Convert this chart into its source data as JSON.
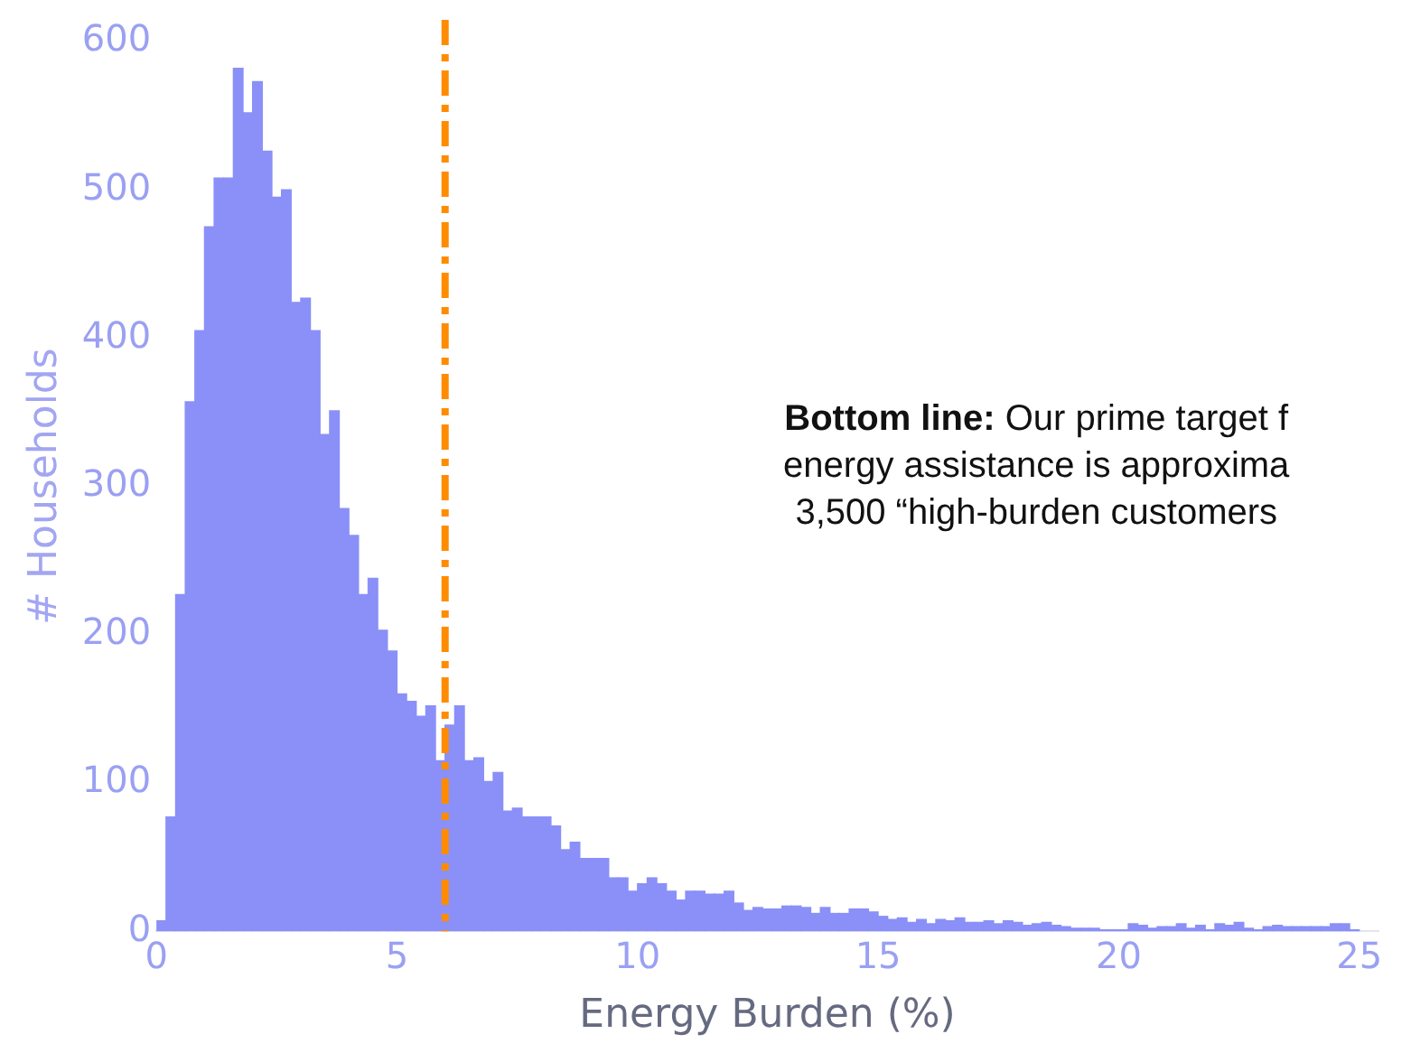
{
  "chart_data": {
    "type": "histogram",
    "xlabel": "Energy Burden (%)",
    "ylabel": "# Households",
    "bins": [
      0,
      0.2,
      0.4,
      0.6,
      0.8,
      1,
      1.2,
      1.4,
      1.6,
      1.8,
      2,
      2.2,
      2.4,
      2.6,
      2.8,
      3,
      3.2,
      3.4,
      3.6,
      3.8,
      4,
      4.2,
      4.4,
      4.6,
      4.8,
      5,
      5.2,
      5.4,
      5.6,
      5.8,
      6,
      6.2,
      6.4,
      6.6,
      6.8,
      7,
      7.2,
      7.4,
      7.6,
      7.8,
      8,
      8.2,
      8.4,
      8.6,
      8.8,
      9,
      9.2,
      9.4,
      9.6,
      9.8,
      10,
      10.2,
      10.4,
      10.6,
      10.8,
      11,
      11.2,
      11.4,
      11.6,
      11.8,
      12,
      12.2,
      12.4,
      12.6,
      12.8,
      13,
      13.2,
      13.4,
      13.6,
      13.8,
      14,
      14.2,
      14.4,
      14.6,
      14.8,
      15,
      15.2,
      15.4,
      15.6,
      15.8,
      16,
      16.2,
      16.4,
      16.6,
      16.8,
      17,
      17.2,
      17.4,
      17.6,
      17.8,
      18,
      18.2,
      18.4,
      18.6,
      18.8,
      19,
      19.2,
      19.4,
      19.6,
      19.8,
      20,
      20.2,
      20.4,
      20.6,
      20.8,
      21,
      21.2,
      21.4,
      21.6,
      21.8,
      22,
      22.2,
      22.4,
      22.6,
      22.8,
      23,
      23.2,
      23.4,
      23.6,
      23.8,
      24,
      24.2,
      24.4,
      24.6,
      24.8,
      25
    ],
    "values": [
      7,
      77,
      227,
      357,
      405,
      475,
      508,
      508,
      582,
      552,
      573,
      526,
      495,
      500,
      424,
      427,
      405,
      335,
      351,
      285,
      267,
      227,
      238,
      203,
      189,
      160,
      155,
      145,
      152,
      115,
      139,
      152,
      115,
      117,
      101,
      107,
      81,
      83,
      77,
      77,
      77,
      71,
      55,
      60,
      49,
      49,
      49,
      36,
      36,
      27,
      32,
      36,
      32,
      27,
      21,
      27,
      27,
      25,
      25,
      27,
      19,
      14,
      16,
      15,
      15,
      17,
      17,
      16,
      12,
      16,
      12,
      12,
      15,
      15,
      13,
      10,
      8,
      9,
      6,
      8,
      5,
      8,
      7,
      9,
      6,
      6,
      7,
      5,
      7,
      6,
      4,
      5,
      6,
      4,
      3,
      2,
      2,
      2,
      1,
      1,
      1,
      5,
      4,
      2,
      3,
      3,
      5,
      2,
      4,
      1,
      5,
      4,
      6,
      2,
      1,
      3,
      4,
      3,
      3,
      3,
      3,
      3,
      5,
      5,
      1
    ],
    "color": "#8a90f7",
    "xlim": [
      0,
      25.4
    ],
    "ylim": [
      0,
      600
    ],
    "xticks": [
      0,
      5,
      10,
      15,
      20,
      25
    ],
    "yticks": [
      0,
      100,
      200,
      300,
      400,
      500,
      600
    ],
    "grid": false,
    "legend": false,
    "ref_lines": [
      {
        "axis": "x",
        "value": 6,
        "color": "#ff8c00",
        "line_style": "dashed"
      }
    ],
    "annotations": [
      "Bottom line: Our prime target f\nenergy assistance is approxima\n3,500 “high-burden customers"
    ]
  }
}
